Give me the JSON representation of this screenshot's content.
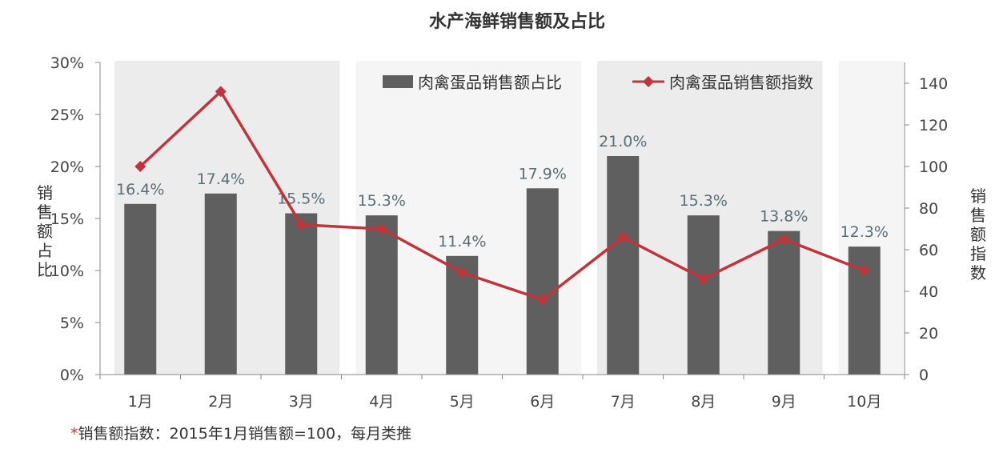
{
  "chart_data": {
    "type": "bar+line",
    "title": "水产海鲜销售额及占比",
    "categories": [
      "1月",
      "2月",
      "3月",
      "4月",
      "5月",
      "6月",
      "7月",
      "8月",
      "9月",
      "10月"
    ],
    "series": [
      {
        "name": "肉禽蛋品销售额占比",
        "type": "bar",
        "axis": "left",
        "values": [
          16.4,
          17.4,
          15.5,
          15.3,
          11.4,
          17.9,
          21.0,
          15.3,
          13.8,
          12.3
        ],
        "labels": [
          "16.4%",
          "17.4%",
          "15.5%",
          "15.3%",
          "11.4%",
          "17.9%",
          "21.0%",
          "15.3%",
          "13.8%",
          "12.3%"
        ],
        "color": "#5f5f5f"
      },
      {
        "name": "肉禽蛋品销售额指数",
        "type": "line",
        "axis": "right",
        "values": [
          100,
          136,
          72,
          70,
          49,
          36,
          66,
          46,
          65,
          50
        ],
        "color": "#c0343b"
      }
    ],
    "y_left": {
      "label": "销售额占比",
      "range": [
        0,
        30
      ],
      "ticks": [
        "0%",
        "5%",
        "10%",
        "15%",
        "20%",
        "25%",
        "30%"
      ]
    },
    "y_right": {
      "label": "销售额指数",
      "range": [
        0,
        150
      ],
      "ticks": [
        "0",
        "20",
        "40",
        "60",
        "80",
        "100",
        "120",
        "140"
      ]
    },
    "legend_position": "top",
    "grid": false
  },
  "footnote": {
    "asterisk": "*",
    "text": "销售额指数：2015年1月销售额=100，每月类推",
    "asterisk_color": "#c0343b"
  }
}
